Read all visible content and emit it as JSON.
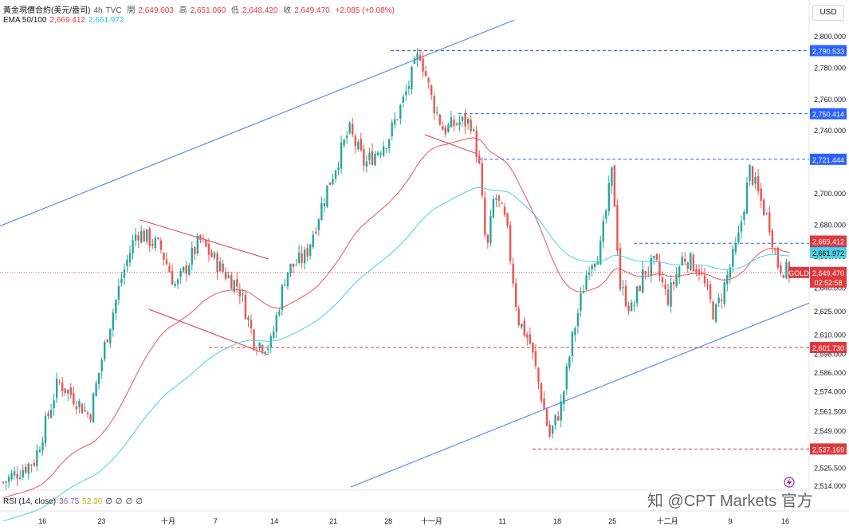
{
  "header": {
    "symbol": "黃金現價合約(美元/盎司)",
    "interval": "4h",
    "source": "TVC",
    "open_label": "開",
    "open": "2,649.603",
    "high_label": "高",
    "high": "2,651.060",
    "low_label": "低",
    "low": "2,648.420",
    "close_label": "收",
    "close": "2,649.470",
    "change": "+2.085 (+0.08%)",
    "ema_label": "EMA 50/100",
    "ema50": "2,669.412",
    "ema100": "2,661.972"
  },
  "currency": "USD",
  "watermark": "知 @CPT Markets 官方",
  "rsi": {
    "label": "RSI (14, close)",
    "value": "36.75",
    "ma": "52.30",
    "extra": [
      "∅",
      "∅",
      "∅",
      "∅"
    ]
  },
  "colors": {
    "up": "#26a69a",
    "down": "#ef5350",
    "ema50": "#ef5350",
    "ema100": "#4dd0e1",
    "trend": "#5b8fe8",
    "hline_blue": "#2962ff",
    "hline_red": "#e0393e"
  },
  "chart_data": {
    "type": "candlestick",
    "instrument": "黃金現價合約(美元/盎司)",
    "interval": "4h",
    "y_axis": {
      "min": 2514,
      "max": 2800,
      "ticks": [
        "2,800.000",
        "2,780.000",
        "2,760.000",
        "2,740.000",
        "2,720.000",
        "2,700.000",
        "2,680.000",
        "2,660.000",
        "2,640.000",
        "2,625.000",
        "2,610.000",
        "2,598.000",
        "2,586.000",
        "2,574.000",
        "2,561.500",
        "2,549.000",
        "2,537.000",
        "2,525.500",
        "2,514.000"
      ]
    },
    "x_axis": {
      "ticks": [
        "16",
        "23",
        "十月",
        "7",
        "14",
        "21",
        "28",
        "十一月",
        "11",
        "18",
        "25",
        "十二月",
        "9",
        "16"
      ]
    },
    "horizontal_levels": [
      {
        "label": "2,790.533",
        "value": 2790.533,
        "color": "blue"
      },
      {
        "label": "2,750.414",
        "value": 2750.414,
        "color": "blue"
      },
      {
        "label": "2,721.444",
        "value": 2721.444,
        "color": "blue"
      },
      {
        "label": "2,668.007",
        "value": 2668.007,
        "color": "blue"
      },
      {
        "label": "2,601.730",
        "value": 2601.73,
        "color": "red"
      },
      {
        "label": "2,537.169",
        "value": 2537.169,
        "color": "red"
      }
    ],
    "price_tags": [
      {
        "label": "2,669.412",
        "value": 2669.412,
        "kind": "ema50"
      },
      {
        "label": "2,661.972",
        "value": 2661.972,
        "kind": "ema100"
      },
      {
        "label": "2,649.470",
        "value": 2649.47,
        "kind": "last",
        "sub": "02:52:58",
        "tag": "GOLD"
      }
    ],
    "anchors": [
      {
        "t": 0,
        "p": 2516
      },
      {
        "t": 0.04,
        "p": 2530
      },
      {
        "t": 0.07,
        "p": 2580
      },
      {
        "t": 0.09,
        "p": 2570
      },
      {
        "t": 0.11,
        "p": 2558
      },
      {
        "t": 0.13,
        "p": 2605
      },
      {
        "t": 0.15,
        "p": 2645
      },
      {
        "t": 0.17,
        "p": 2676
      },
      {
        "t": 0.2,
        "p": 2665
      },
      {
        "t": 0.22,
        "p": 2640
      },
      {
        "t": 0.25,
        "p": 2670
      },
      {
        "t": 0.28,
        "p": 2650
      },
      {
        "t": 0.3,
        "p": 2640
      },
      {
        "t": 0.32,
        "p": 2605
      },
      {
        "t": 0.34,
        "p": 2603
      },
      {
        "t": 0.36,
        "p": 2650
      },
      {
        "t": 0.385,
        "p": 2660
      },
      {
        "t": 0.41,
        "p": 2700
      },
      {
        "t": 0.44,
        "p": 2740
      },
      {
        "t": 0.46,
        "p": 2718
      },
      {
        "t": 0.49,
        "p": 2735
      },
      {
        "t": 0.51,
        "p": 2760
      },
      {
        "t": 0.53,
        "p": 2790
      },
      {
        "t": 0.545,
        "p": 2760
      },
      {
        "t": 0.56,
        "p": 2740
      },
      {
        "t": 0.58,
        "p": 2745
      },
      {
        "t": 0.595,
        "p": 2745
      },
      {
        "t": 0.605,
        "p": 2720
      },
      {
        "t": 0.615,
        "p": 2660
      },
      {
        "t": 0.625,
        "p": 2700
      },
      {
        "t": 0.64,
        "p": 2680
      },
      {
        "t": 0.655,
        "p": 2620
      },
      {
        "t": 0.67,
        "p": 2605
      },
      {
        "t": 0.685,
        "p": 2570
      },
      {
        "t": 0.695,
        "p": 2545
      },
      {
        "t": 0.71,
        "p": 2565
      },
      {
        "t": 0.725,
        "p": 2610
      },
      {
        "t": 0.745,
        "p": 2655
      },
      {
        "t": 0.76,
        "p": 2665
      },
      {
        "t": 0.775,
        "p": 2715
      },
      {
        "t": 0.785,
        "p": 2640
      },
      {
        "t": 0.8,
        "p": 2625
      },
      {
        "t": 0.815,
        "p": 2650
      },
      {
        "t": 0.83,
        "p": 2655
      },
      {
        "t": 0.845,
        "p": 2632
      },
      {
        "t": 0.865,
        "p": 2660
      },
      {
        "t": 0.885,
        "p": 2652
      },
      {
        "t": 0.905,
        "p": 2622
      },
      {
        "t": 0.92,
        "p": 2645
      },
      {
        "t": 0.935,
        "p": 2670
      },
      {
        "t": 0.95,
        "p": 2715
      },
      {
        "t": 0.96,
        "p": 2700
      },
      {
        "t": 0.975,
        "p": 2680
      },
      {
        "t": 0.985,
        "p": 2655
      },
      {
        "t": 1,
        "p": 2649
      }
    ]
  }
}
